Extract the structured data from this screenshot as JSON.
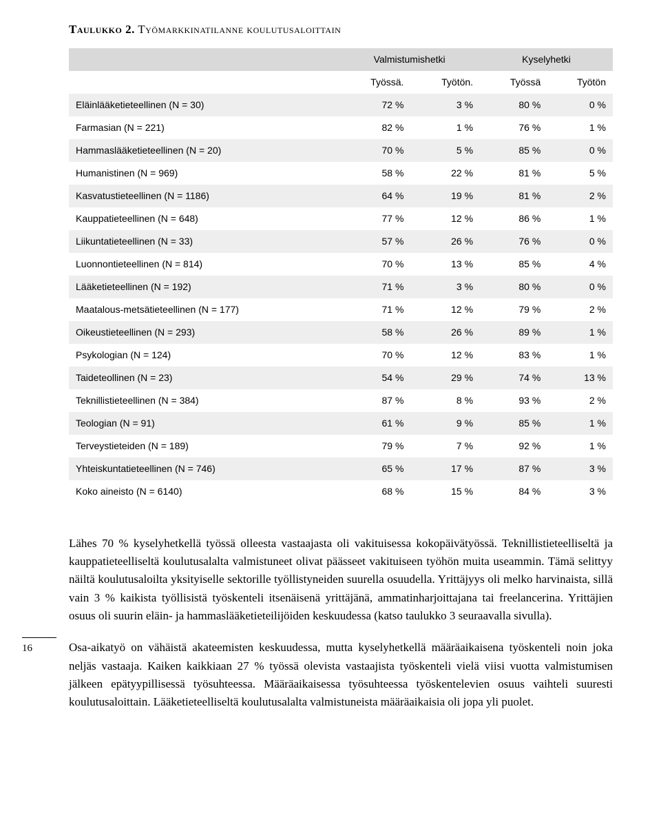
{
  "title": {
    "label_bold": "Taulukko 2.",
    "label_rest": " Työmarkkinatilanne koulutusaloittain"
  },
  "table": {
    "group_headers": [
      "",
      "Valmistumishetki",
      "Kyselyhetki"
    ],
    "sub_headers": [
      "",
      "Työssä.",
      "Työtön.",
      "Työssä",
      "Työtön"
    ],
    "rows": [
      {
        "label": "Eläinlääketieteellinen (N = 30)",
        "c": [
          "72 %",
          "3 %",
          "80 %",
          "0 %"
        ]
      },
      {
        "label": "Farmasian (N = 221)",
        "c": [
          "82 %",
          "1 %",
          "76 %",
          "1 %"
        ]
      },
      {
        "label": "Hammaslääketieteellinen (N = 20)",
        "c": [
          "70 %",
          "5 %",
          "85 %",
          "0 %"
        ]
      },
      {
        "label": "Humanistinen (N = 969)",
        "c": [
          "58 %",
          "22 %",
          "81 %",
          "5 %"
        ]
      },
      {
        "label": "Kasvatustieteellinen (N = 1186)",
        "c": [
          "64 %",
          "19 %",
          "81 %",
          "2 %"
        ]
      },
      {
        "label": "Kauppatieteellinen (N = 648)",
        "c": [
          "77 %",
          "12 %",
          "86 %",
          "1 %"
        ]
      },
      {
        "label": "Liikuntatieteellinen (N = 33)",
        "c": [
          "57 %",
          "26 %",
          "76 %",
          "0 %"
        ]
      },
      {
        "label": "Luonnontieteellinen (N = 814)",
        "c": [
          "70 %",
          "13 %",
          "85 %",
          "4 %"
        ]
      },
      {
        "label": "Lääketieteellinen (N = 192)",
        "c": [
          "71 %",
          "3 %",
          "80 %",
          "0 %"
        ]
      },
      {
        "label": "Maatalous-metsätieteellinen (N = 177)",
        "c": [
          "71 %",
          "12 %",
          "79 %",
          "2 %"
        ]
      },
      {
        "label": "Oikeustieteellinen (N = 293)",
        "c": [
          "58 %",
          "26 %",
          "89 %",
          "1 %"
        ]
      },
      {
        "label": "Psykologian (N = 124)",
        "c": [
          "70 %",
          "12 %",
          "83 %",
          "1 %"
        ]
      },
      {
        "label": "Taideteollinen (N = 23)",
        "c": [
          "54 %",
          "29 %",
          "74 %",
          "13 %"
        ]
      },
      {
        "label": "Teknillistieteellinen (N = 384)",
        "c": [
          "87 %",
          "8 %",
          "93 %",
          "2 %"
        ]
      },
      {
        "label": "Teologian (N = 91)",
        "c": [
          "61 %",
          "9 %",
          "85 %",
          "1 %"
        ]
      },
      {
        "label": "Terveystieteiden (N = 189)",
        "c": [
          "79 %",
          "7 %",
          "92 %",
          "1 %"
        ]
      },
      {
        "label": "Yhteiskuntatieteellinen (N = 746)",
        "c": [
          "65 %",
          "17 %",
          "87 %",
          "3 %"
        ]
      },
      {
        "label": "Koko aineisto (N = 6140)",
        "c": [
          "68 %",
          "15 %",
          "84 %",
          "3 %"
        ]
      }
    ],
    "shade_color": "#eeeeee",
    "header_bg": "#d9d9d9"
  },
  "paragraphs": {
    "p1": "Lähes 70 % kyselyhetkellä työssä olleesta vastaajasta oli vakituisessa kokopäivätyössä. Teknillistieteelliseltä ja kauppatieteelliseltä koulutusalalta valmistuneet olivat päässeet vakituiseen työhön muita useammin. Tämä selittyy näiltä koulutusaloilta yksityiselle sektorille työllistyneiden suurella osuudella. Yrittäjyys oli melko harvinaista, sillä vain 3 % kaikista työllisistä työskenteli itsenäisenä yrittäjänä, ammatinharjoittajana tai freelancerina. Yrittäjien osuus oli suurin eläin- ja hammaslääketieteilijöiden keskuudessa (katso taulukko 3 seuraavalla sivulla).",
    "p2": "Osa-aikatyö on vähäistä akateemisten keskuudessa, mutta kyselyhetkellä määräaikaisena työskenteli noin joka neljäs vastaaja. Kaiken kaikkiaan 27 % työssä olevista vastaajista työskenteli vielä viisi vuotta valmistumisen jälkeen epätyypillisessä työsuhteessa. Määräaikaisessa työsuhteessa työskentelevien osuus vaihteli suuresti koulutusaloittain. Lääketieteelliseltä koulutusalalta valmistuneista määräaikaisia oli jopa yli puolet."
  },
  "page_number": "16"
}
